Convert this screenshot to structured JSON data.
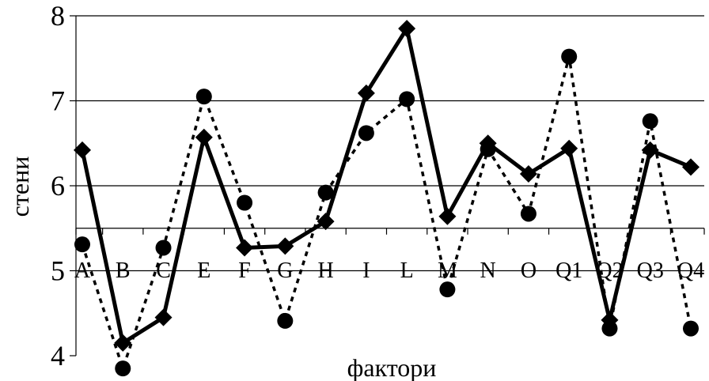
{
  "chart_data": {
    "type": "line",
    "xlabel": "фактори",
    "ylabel": "стени",
    "ylim": [
      4,
      8
    ],
    "yticks": [
      4,
      5,
      6,
      7,
      8
    ],
    "reference_line": 5.5,
    "grid": true,
    "categories": [
      "A",
      "B",
      "C",
      "E",
      "F",
      "G",
      "H",
      "I",
      "L",
      "M",
      "N",
      "O",
      "Q1",
      "Q2",
      "Q3",
      "Q4"
    ],
    "series": [
      {
        "style": "solid",
        "marker": "diamond",
        "color": "#000000",
        "values": [
          6.42,
          4.15,
          4.45,
          6.57,
          5.27,
          5.29,
          5.58,
          7.09,
          7.85,
          5.64,
          6.5,
          6.14,
          6.44,
          4.42,
          6.42,
          6.22
        ]
      },
      {
        "style": "dashed",
        "marker": "circle",
        "color": "#000000",
        "values": [
          5.31,
          3.85,
          5.27,
          7.05,
          5.8,
          4.41,
          5.92,
          6.62,
          7.02,
          4.78,
          6.43,
          5.67,
          7.52,
          4.32,
          6.76,
          4.32
        ]
      }
    ]
  }
}
